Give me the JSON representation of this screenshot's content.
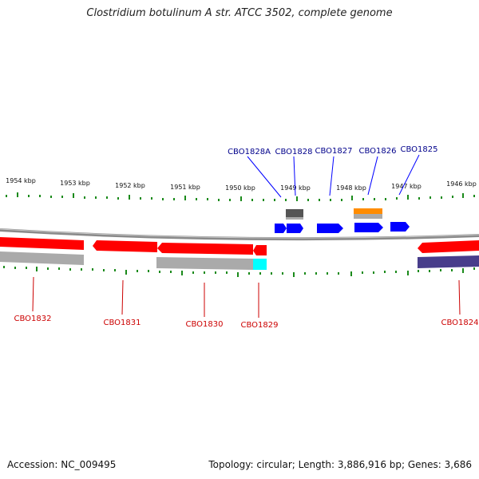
{
  "title": "Clostridium botulinum A str. ATCC 3502, complete genome",
  "footer": {
    "accession": "Accession: NC_009495",
    "summary": "Topology: circular; Length: 3,886,916 bp; Genes: 3,686"
  },
  "kbp_ticks": [
    "1954 kbp",
    "1953 kbp",
    "1952 kbp",
    "1951 kbp",
    "1950 kbp",
    "1949 kbp",
    "1948 kbp",
    "1947 kbp",
    "1946 kbp"
  ],
  "genes_forward": [
    "CBO1828A",
    "CBO1828",
    "CBO1827",
    "CBO1826",
    "CBO1825"
  ],
  "genes_reverse": [
    "CBO1832",
    "CBO1831",
    "CBO1830",
    "CBO1829",
    "CBO1824"
  ],
  "colors": {
    "forward_gene": "#0000ff",
    "reverse_gene": "#ff0000",
    "forward_label": "#00008b",
    "reverse_label": "#cc0000",
    "tick": "#1a8a1a",
    "backbone": "#888888",
    "feature_gray": "#aaaaaa",
    "feature_dark": "#555555",
    "feature_orange": "#ff8c00",
    "feature_cyan": "#00ffff",
    "feature_purple": "#483d8b"
  }
}
